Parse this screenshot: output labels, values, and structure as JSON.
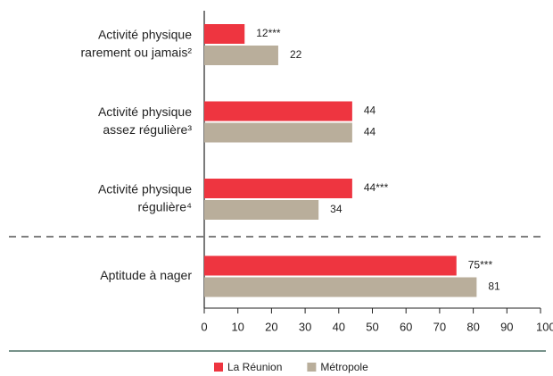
{
  "chart_data": {
    "type": "bar",
    "orientation": "horizontal",
    "categories": [
      [
        "Activité physique",
        "rarement ou jamais²"
      ],
      [
        "Activité physique",
        "assez régulière³"
      ],
      [
        "Activité physique",
        "régulière⁴"
      ],
      [
        "Aptitude à nager"
      ]
    ],
    "series": [
      {
        "name": "La Réunion",
        "color": "#ee3540",
        "values": [
          12,
          44,
          44,
          75
        ],
        "value_labels": [
          "12***",
          "44",
          "44***",
          "75***"
        ]
      },
      {
        "name": "Métropole",
        "color": "#b9ae9b",
        "values": [
          22,
          44,
          34,
          81
        ]
      }
    ],
    "xlim": [
      0,
      100
    ],
    "xticks": [
      0,
      10,
      20,
      30,
      40,
      50,
      60,
      70,
      80,
      90,
      {
        "value": 100,
        "label": "100 %"
      }
    ],
    "legend": "bottom"
  }
}
